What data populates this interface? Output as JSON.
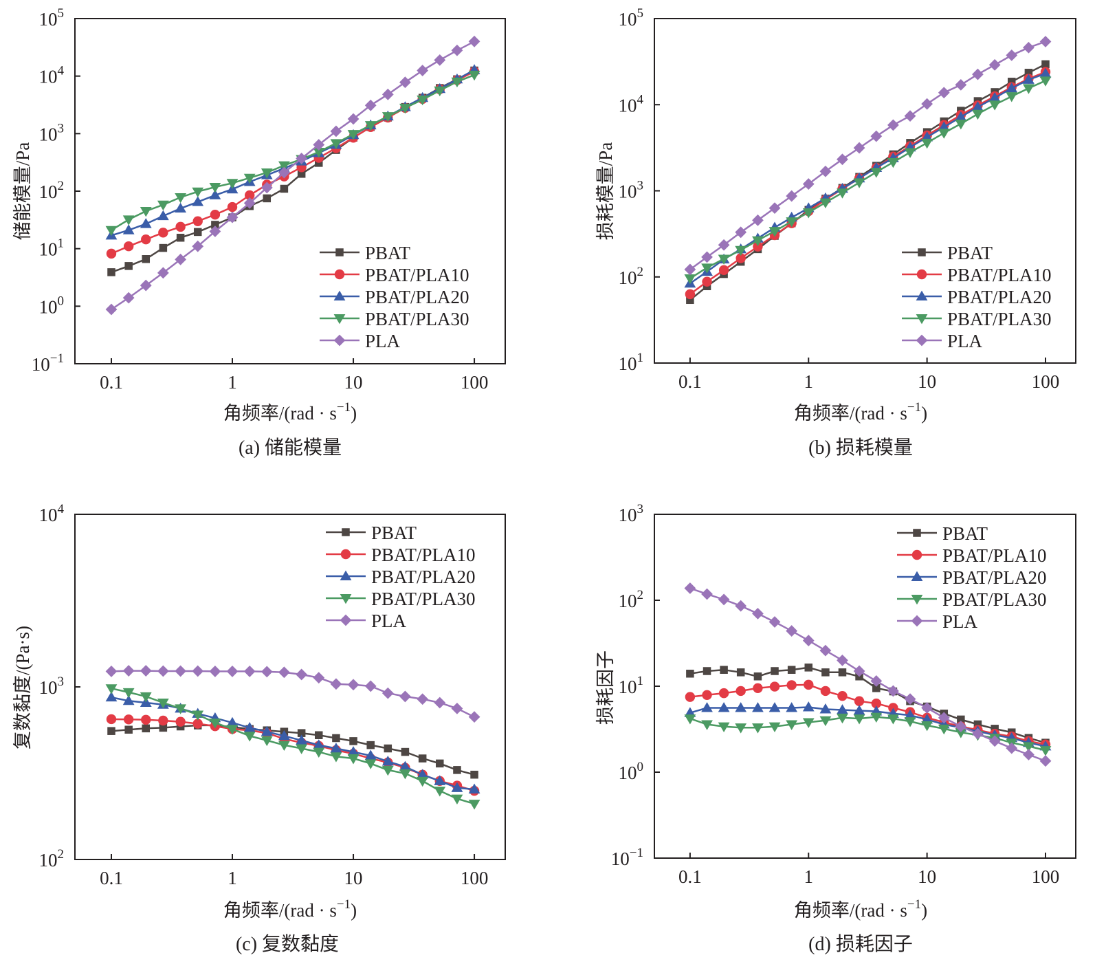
{
  "figure": {
    "x_axis_title": "角频率/(rad · s",
    "x_axis_title_sup": "−1",
    "x_axis_title_end": ")"
  },
  "series_styles": [
    {
      "name": "PBAT",
      "color": "#4d4643",
      "marker": "square"
    },
    {
      "name": "PBAT/PLA10",
      "color": "#e33b45",
      "marker": "circle"
    },
    {
      "name": "PBAT/PLA20",
      "color": "#3a5da8",
      "marker": "triangle-up"
    },
    {
      "name": "PBAT/PLA30",
      "color": "#4b9a62",
      "marker": "triangle-down"
    },
    {
      "name": "PLA",
      "color": "#9a74b8",
      "marker": "diamond"
    }
  ],
  "chart_data": [
    {
      "id": "a",
      "type": "line",
      "title": "(a) 储能模量",
      "xlabel": "角频率/(rad · s−1)",
      "ylabel": "储能模量/Pa",
      "xscale": "log",
      "yscale": "log",
      "xlim": [
        0.05,
        180
      ],
      "ylim_exp": [
        -1,
        5
      ],
      "xticks": [
        0.1,
        1,
        10,
        100
      ],
      "xtick_labels": [
        "0.1",
        "1",
        "10",
        "100"
      ],
      "legend_position": "bottom-right",
      "x": [
        0.1,
        0.139,
        0.193,
        0.268,
        0.373,
        0.518,
        0.72,
        1,
        1.39,
        1.93,
        2.68,
        3.73,
        5.18,
        7.2,
        10,
        13.9,
        19.3,
        26.8,
        37.3,
        51.8,
        72,
        100
      ],
      "series": [
        {
          "name": "PBAT",
          "values": [
            3.9,
            5,
            6.6,
            10.3,
            15.5,
            19.5,
            26,
            35,
            55,
            75,
            110,
            200,
            310,
            520,
            850,
            1300,
            1900,
            2900,
            4200,
            6200,
            8800,
            12500
          ]
        },
        {
          "name": "PBAT/PLA10",
          "values": [
            8.2,
            11,
            14.5,
            19,
            24,
            30,
            39,
            53,
            85,
            130,
            180,
            260,
            380,
            560,
            850,
            1300,
            1900,
            2800,
            4000,
            5900,
            8500,
            12000
          ]
        },
        {
          "name": "PBAT/PLA20",
          "values": [
            17,
            21,
            27,
            37,
            50,
            65,
            85,
            108,
            145,
            190,
            250,
            330,
            460,
            640,
            950,
            1400,
            2000,
            2900,
            4200,
            6000,
            8800,
            12800
          ]
        },
        {
          "name": "PBAT/PLA30",
          "values": [
            21,
            32,
            45,
            58,
            78,
            98,
            118,
            138,
            170,
            210,
            280,
            360,
            480,
            680,
            980,
            1400,
            2000,
            2800,
            3900,
            5600,
            8000,
            10500
          ]
        },
        {
          "name": "PLA",
          "values": [
            0.88,
            1.4,
            2.3,
            3.8,
            6.5,
            11,
            20,
            35,
            62,
            115,
            210,
            370,
            640,
            1100,
            1800,
            3100,
            4800,
            7800,
            12500,
            19000,
            28000,
            40000
          ]
        }
      ]
    },
    {
      "id": "b",
      "type": "line",
      "title": "(b) 损耗模量",
      "xlabel": "角频率/(rad · s−1)",
      "ylabel": "损耗模量/Pa",
      "xscale": "log",
      "yscale": "log",
      "xlim": [
        0.05,
        180
      ],
      "ylim_exp": [
        1,
        5
      ],
      "xticks": [
        0.1,
        1,
        10,
        100
      ],
      "xtick_labels": [
        "0.1",
        "1",
        "10",
        "100"
      ],
      "legend_position": "bottom-right",
      "x": [
        0.1,
        0.139,
        0.193,
        0.268,
        0.373,
        0.518,
        0.72,
        1,
        1.39,
        1.93,
        2.68,
        3.73,
        5.18,
        7.2,
        10,
        13.9,
        19.3,
        26.8,
        37.3,
        51.8,
        72,
        100
      ],
      "series": [
        {
          "name": "PBAT",
          "values": [
            54,
            78,
            108,
            150,
            210,
            300,
            420,
            600,
            810,
            1080,
            1450,
            1950,
            2650,
            3600,
            4800,
            6400,
            8500,
            11000,
            14000,
            18500,
            23500,
            29500
          ]
        },
        {
          "name": "PBAT/PLA10",
          "values": [
            63,
            88,
            120,
            165,
            225,
            305,
            420,
            580,
            790,
            1050,
            1400,
            1850,
            2500,
            3300,
            4400,
            5800,
            7600,
            9800,
            12500,
            16000,
            20000,
            24000
          ]
        },
        {
          "name": "PBAT/PLA20",
          "values": [
            84,
            115,
            160,
            210,
            280,
            375,
            490,
            630,
            820,
            1060,
            1400,
            1850,
            2400,
            3200,
            4200,
            5500,
            7200,
            9400,
            12000,
            15500,
            19500,
            23000
          ]
        },
        {
          "name": "PBAT/PLA30",
          "values": [
            96,
            128,
            162,
            205,
            265,
            340,
            440,
            560,
            730,
            950,
            1250,
            1650,
            2150,
            2800,
            3600,
            4700,
            6000,
            7800,
            10000,
            12500,
            15500,
            19000
          ]
        },
        {
          "name": "PLA",
          "values": [
            122,
            170,
            235,
            330,
            455,
            630,
            870,
            1200,
            1680,
            2320,
            3150,
            4300,
            5800,
            7400,
            10200,
            13800,
            17000,
            22500,
            29000,
            37500,
            46000,
            54000
          ]
        }
      ]
    },
    {
      "id": "c",
      "type": "line",
      "title": "(c) 复数黏度",
      "xlabel": "角频率/(rad · s−1)",
      "ylabel": "复数黏度/(Pa·s)",
      "xscale": "log",
      "yscale": "log",
      "xlim": [
        0.05,
        180
      ],
      "ylim_exp": [
        2,
        4
      ],
      "xticks": [
        0.1,
        1,
        10,
        100
      ],
      "xtick_labels": [
        "0.1",
        "1",
        "10",
        "100"
      ],
      "legend_position": "top-right",
      "x": [
        0.1,
        0.139,
        0.193,
        0.268,
        0.373,
        0.518,
        0.72,
        1,
        1.39,
        1.93,
        2.68,
        3.73,
        5.18,
        7.2,
        10,
        13.9,
        19.3,
        26.8,
        37.3,
        51.8,
        72,
        100
      ],
      "series": [
        {
          "name": "PBAT",
          "values": [
            555,
            565,
            575,
            580,
            590,
            598,
            600,
            585,
            570,
            560,
            550,
            540,
            525,
            505,
            485,
            460,
            440,
            420,
            385,
            360,
            330,
            310
          ]
        },
        {
          "name": "PBAT/PLA10",
          "values": [
            650,
            648,
            645,
            638,
            628,
            612,
            592,
            570,
            560,
            540,
            500,
            475,
            455,
            430,
            410,
            385,
            365,
            340,
            310,
            285,
            268,
            250
          ]
        },
        {
          "name": "PBAT/PLA20",
          "values": [
            870,
            830,
            810,
            790,
            750,
            700,
            660,
            620,
            580,
            550,
            520,
            490,
            460,
            440,
            420,
            400,
            370,
            345,
            310,
            285,
            260,
            255
          ]
        },
        {
          "name": "PBAT/PLA30",
          "values": [
            980,
            930,
            880,
            810,
            750,
            690,
            620,
            570,
            520,
            490,
            460,
            440,
            420,
            395,
            385,
            360,
            330,
            315,
            285,
            250,
            225,
            210
          ]
        },
        {
          "name": "PLA",
          "values": [
            1230,
            1240,
            1240,
            1235,
            1235,
            1235,
            1230,
            1230,
            1230,
            1225,
            1215,
            1180,
            1130,
            1040,
            1030,
            1010,
            920,
            880,
            850,
            810,
            750,
            670
          ]
        }
      ]
    },
    {
      "id": "d",
      "type": "line",
      "title": "(d) 损耗因子",
      "xlabel": "角频率/(rad · s−1)",
      "ylabel": "损耗因子",
      "xscale": "log",
      "yscale": "log",
      "xlim": [
        0.05,
        180
      ],
      "ylim_exp": [
        -1,
        3
      ],
      "xticks": [
        0.1,
        1,
        10,
        100
      ],
      "xtick_labels": [
        "0.1",
        "1",
        "10",
        "100"
      ],
      "legend_position": "top-right",
      "x": [
        0.1,
        0.139,
        0.193,
        0.268,
        0.373,
        0.518,
        0.72,
        1,
        1.39,
        1.93,
        2.68,
        3.73,
        5.18,
        7.2,
        10,
        13.9,
        19.3,
        26.8,
        37.3,
        51.8,
        72,
        100
      ],
      "series": [
        {
          "name": "PBAT",
          "values": [
            14,
            15,
            15.5,
            14.5,
            13,
            15,
            15.5,
            16.5,
            14.5,
            14.5,
            13,
            9.5,
            8.7,
            6.7,
            5.8,
            4.8,
            4.1,
            3.6,
            3.2,
            2.9,
            2.5,
            2.2
          ]
        },
        {
          "name": "PBAT/PLA10",
          "values": [
            7.5,
            7.9,
            8.3,
            8.8,
            9.5,
            9.9,
            10.3,
            10.4,
            8.8,
            7.7,
            6.7,
            6.3,
            5.6,
            5,
            4.3,
            3.8,
            3.4,
            3.1,
            2.8,
            2.6,
            2.3,
            2.1
          ]
        },
        {
          "name": "PBAT/PLA20",
          "values": [
            4.9,
            5.6,
            5.6,
            5.6,
            5.6,
            5.6,
            5.6,
            5.7,
            5.4,
            5.3,
            5.2,
            5.1,
            4.8,
            4.6,
            4.1,
            3.6,
            3.3,
            3,
            2.7,
            2.5,
            2.2,
            2
          ]
        },
        {
          "name": "PBAT/PLA30",
          "values": [
            4.2,
            3.6,
            3.4,
            3.3,
            3.3,
            3.4,
            3.6,
            3.8,
            4,
            4.3,
            4.2,
            4.4,
            4.2,
            3.9,
            3.5,
            3.2,
            2.9,
            2.7,
            2.5,
            2.2,
            2,
            1.8
          ]
        },
        {
          "name": "PLA",
          "values": [
            138,
            118,
            102,
            86,
            70,
            56,
            44,
            34,
            26,
            20,
            15,
            11.5,
            8.8,
            7.1,
            5.6,
            4.3,
            3.4,
            2.8,
            2.3,
            1.9,
            1.6,
            1.35
          ]
        }
      ]
    }
  ]
}
